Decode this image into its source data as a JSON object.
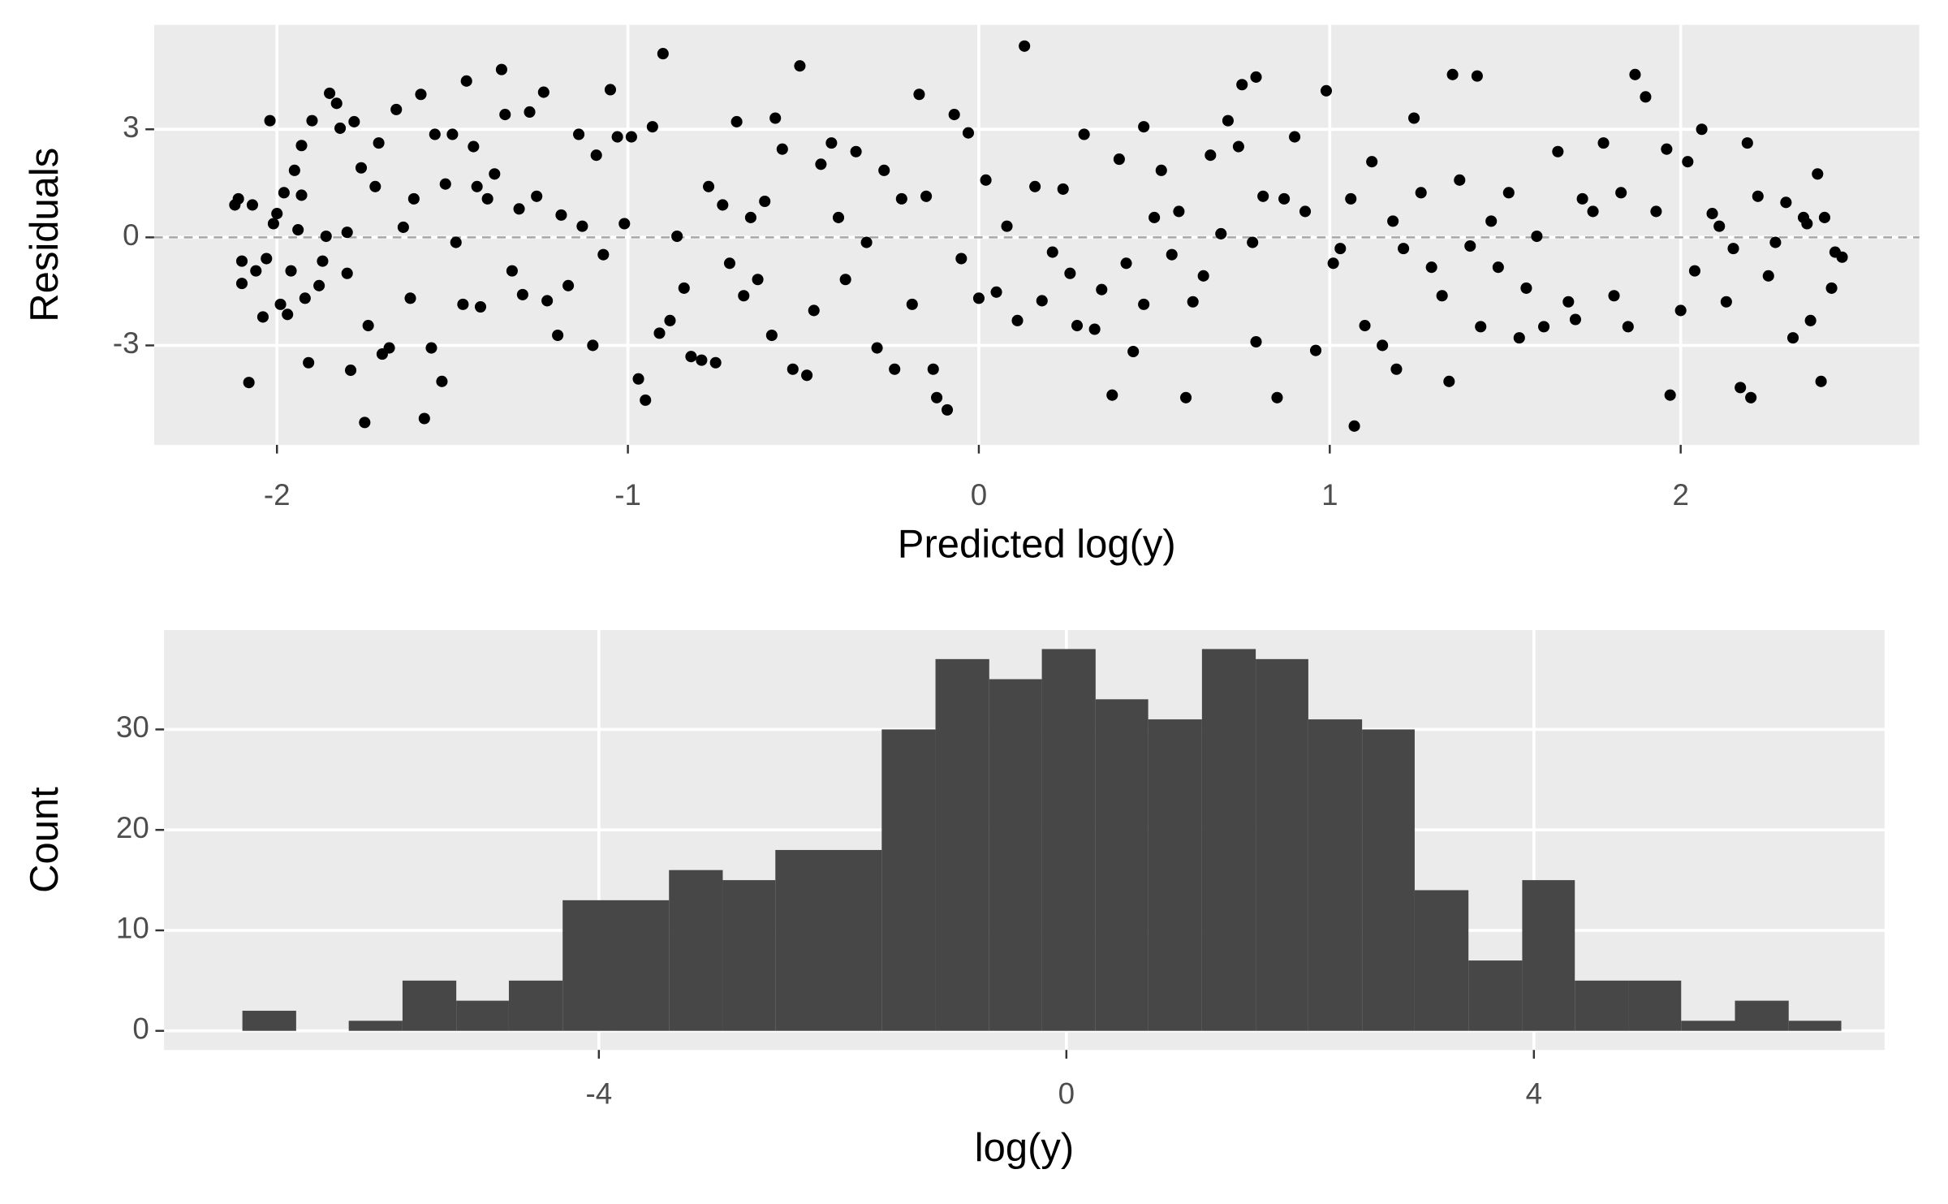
{
  "chart_data": [
    {
      "type": "scatter",
      "x_label": "Predicted log(y)",
      "y_label": "Residuals",
      "color": "#000000",
      "grid": true,
      "hline": 0,
      "xlim": [
        -2.35,
        2.68
      ],
      "ylim": [
        -5.76,
        5.9
      ],
      "xticks": [
        -2,
        -1,
        0,
        1,
        2
      ],
      "yticks": [
        -3,
        0,
        3
      ],
      "x": [
        -2.12,
        -2.11,
        -2.1,
        -2.1,
        -2.08,
        -2.07,
        -2.06,
        -2.04,
        -2.03,
        -2.02,
        -2.01,
        -2.0,
        -1.99,
        -1.98,
        -1.97,
        -1.96,
        -1.95,
        -1.94,
        -1.93,
        -1.93,
        -1.92,
        -1.91,
        -1.9,
        -1.88,
        -1.87,
        -1.86,
        -1.85,
        -1.83,
        -1.82,
        -1.8,
        -1.8,
        -1.79,
        -1.78,
        -1.76,
        -1.75,
        -1.74,
        -1.72,
        -1.71,
        -1.7,
        -1.68,
        -1.66,
        -1.64,
        -1.62,
        -1.61,
        -1.59,
        -1.58,
        -1.56,
        -1.55,
        -1.53,
        -1.52,
        -1.5,
        -1.49,
        -1.47,
        -1.46,
        -1.44,
        -1.43,
        -1.42,
        -1.4,
        -1.38,
        -1.36,
        -1.35,
        -1.33,
        -1.31,
        -1.3,
        -1.28,
        -1.26,
        -1.24,
        -1.23,
        -1.2,
        -1.19,
        -1.17,
        -1.14,
        -1.13,
        -1.1,
        -1.09,
        -1.07,
        -1.05,
        -1.03,
        -1.01,
        -0.99,
        -0.97,
        -0.95,
        -0.93,
        -0.91,
        -0.9,
        -0.88,
        -0.86,
        -0.84,
        -0.82,
        -0.79,
        -0.77,
        -0.75,
        -0.73,
        -0.71,
        -0.69,
        -0.67,
        -0.65,
        -0.63,
        -0.61,
        -0.59,
        -0.58,
        -0.56,
        -0.53,
        -0.51,
        -0.49,
        -0.47,
        -0.45,
        -0.42,
        -0.4,
        -0.38,
        -0.35,
        -0.32,
        -0.29,
        -0.27,
        -0.24,
        -0.22,
        -0.19,
        -0.17,
        -0.15,
        -0.13,
        -0.12,
        -0.09,
        -0.07,
        -0.05,
        -0.03,
        0.0,
        0.02,
        0.05,
        0.08,
        0.11,
        0.13,
        0.16,
        0.18,
        0.21,
        0.24,
        0.26,
        0.28,
        0.3,
        0.33,
        0.35,
        0.38,
        0.4,
        0.42,
        0.44,
        0.47,
        0.47,
        0.5,
        0.52,
        0.55,
        0.57,
        0.59,
        0.61,
        0.64,
        0.66,
        0.69,
        0.71,
        0.74,
        0.75,
        0.78,
        0.79,
        0.79,
        0.81,
        0.85,
        0.87,
        0.9,
        0.93,
        0.96,
        0.99,
        1.01,
        1.03,
        1.06,
        1.07,
        1.1,
        1.12,
        1.15,
        1.18,
        1.19,
        1.21,
        1.24,
        1.26,
        1.29,
        1.32,
        1.34,
        1.35,
        1.37,
        1.4,
        1.42,
        1.43,
        1.46,
        1.48,
        1.51,
        1.54,
        1.56,
        1.59,
        1.61,
        1.65,
        1.68,
        1.7,
        1.72,
        1.75,
        1.78,
        1.81,
        1.83,
        1.85,
        1.87,
        1.9,
        1.93,
        1.96,
        1.97,
        2.0,
        2.02,
        2.04,
        2.06,
        2.09,
        2.11,
        2.13,
        2.15,
        2.17,
        2.19,
        2.2,
        2.22,
        2.25,
        2.27,
        2.3,
        2.32,
        2.35,
        2.36,
        2.37,
        2.39,
        2.4,
        2.41,
        2.43,
        2.44,
        2.46
      ],
      "y": [
        0.9,
        1.07,
        -0.66,
        -1.28,
        -4.03,
        0.9,
        -0.93,
        -2.21,
        -0.59,
        3.24,
        0.38,
        0.66,
        -1.86,
        1.24,
        -2.14,
        -0.93,
        1.86,
        0.21,
        1.17,
        2.55,
        -1.69,
        -3.48,
        3.24,
        -1.34,
        -0.66,
        0.03,
        4.0,
        3.72,
        3.03,
        0.14,
        -1.0,
        -3.69,
        3.21,
        1.93,
        -5.14,
        -2.45,
        1.41,
        2.62,
        -3.24,
        -3.07,
        3.55,
        0.28,
        -1.69,
        1.07,
        3.97,
        -5.03,
        -3.07,
        2.86,
        -4.0,
        1.48,
        2.86,
        -0.14,
        -1.86,
        4.34,
        2.52,
        1.41,
        -1.93,
        1.07,
        1.76,
        4.66,
        3.41,
        -0.93,
        0.79,
        -1.59,
        3.48,
        1.14,
        4.03,
        -1.76,
        -2.72,
        0.62,
        -1.34,
        2.86,
        0.31,
        -3.0,
        2.28,
        -0.48,
        4.1,
        2.79,
        0.38,
        2.79,
        -3.93,
        -4.52,
        3.07,
        -2.66,
        5.1,
        -2.31,
        0.03,
        -1.41,
        -3.31,
        -3.41,
        1.41,
        -3.48,
        0.9,
        -0.72,
        3.21,
        -1.62,
        0.55,
        -1.17,
        1.0,
        -2.72,
        3.31,
        2.45,
        -3.66,
        4.76,
        -3.83,
        -2.03,
        2.03,
        2.62,
        0.55,
        -1.17,
        2.38,
        -0.14,
        -3.07,
        1.86,
        -3.66,
        1.07,
        -1.86,
        3.97,
        1.14,
        -3.66,
        -4.45,
        -4.79,
        3.41,
        -0.59,
        2.9,
        -1.69,
        1.59,
        -1.52,
        0.31,
        -2.31,
        5.31,
        1.41,
        -1.76,
        -0.41,
        1.34,
        -1.0,
        -2.45,
        2.86,
        -2.55,
        -1.45,
        -4.38,
        2.17,
        -0.72,
        -3.17,
        -1.86,
        3.07,
        0.55,
        1.86,
        -0.48,
        0.72,
        -4.45,
        -1.79,
        -1.07,
        2.28,
        0.1,
        3.24,
        2.52,
        4.24,
        -0.14,
        4.45,
        -2.9,
        1.14,
        -4.45,
        1.07,
        2.79,
        0.72,
        -3.14,
        4.07,
        -0.72,
        -0.31,
        1.07,
        -5.24,
        -2.45,
        2.1,
        -3.0,
        0.45,
        -3.66,
        -0.31,
        3.31,
        1.24,
        -0.83,
        -1.62,
        -4.0,
        4.52,
        1.59,
        -0.24,
        4.48,
        -2.48,
        0.45,
        -0.83,
        1.24,
        -2.79,
        -1.41,
        0.03,
        -2.48,
        2.38,
        -1.79,
        -2.28,
        1.07,
        0.72,
        2.62,
        -1.62,
        1.24,
        -2.48,
        4.52,
        3.9,
        0.72,
        2.45,
        -4.38,
        -2.03,
        2.1,
        -0.93,
        3.0,
        0.66,
        0.31,
        -1.79,
        -0.31,
        -4.17,
        2.62,
        -4.45,
        1.14,
        -1.07,
        -0.14,
        0.97,
        -2.79,
        0.55,
        0.38,
        -2.31,
        1.76,
        -4.0,
        0.55,
        -1.41,
        -0.41,
        -0.55
      ]
    },
    {
      "type": "histogram",
      "x_label": "log(y)",
      "y_label": "Count",
      "color": "#474747",
      "grid": true,
      "xlim": [
        -7.72,
        7.0
      ],
      "ylim": [
        -1.9,
        39.9
      ],
      "xticks": [
        -4,
        0,
        4
      ],
      "yticks": [
        0,
        10,
        20,
        30
      ],
      "bins": [
        -7.05,
        -6.59,
        -6.14,
        -5.68,
        -5.22,
        -4.77,
        -4.31,
        -3.86,
        -3.4,
        -2.94,
        -2.49,
        -2.03,
        -1.58,
        -1.12,
        -0.66,
        -0.21,
        0.25,
        0.7,
        1.16,
        1.62,
        2.07,
        2.53,
        2.98,
        3.44,
        3.9,
        4.35,
        4.81,
        5.26,
        5.72,
        6.18,
        6.63
      ],
      "values": [
        2,
        0,
        1,
        5,
        3,
        5,
        13,
        13,
        16,
        15,
        18,
        18,
        30,
        37,
        35,
        38,
        33,
        31,
        38,
        37,
        31,
        30,
        14,
        7,
        15,
        5,
        5,
        1,
        3,
        1
      ]
    }
  ]
}
